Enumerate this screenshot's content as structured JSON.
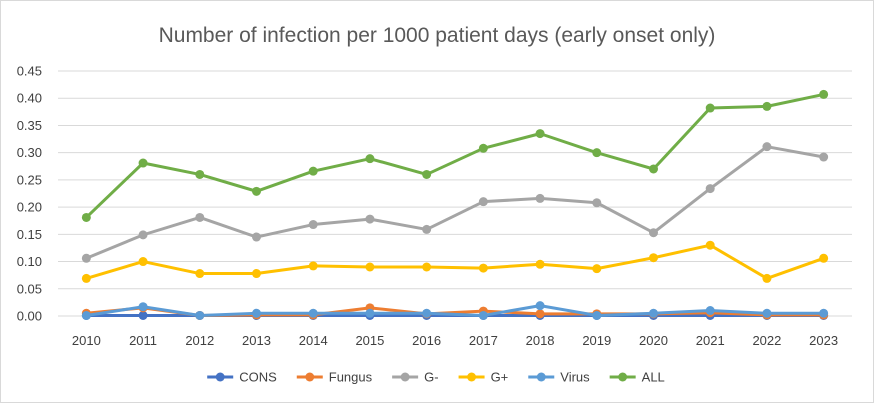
{
  "chart_data": {
    "type": "line",
    "title": "Number of infection per 1000 patient days (early onset only)",
    "xlabel": "",
    "ylabel": "",
    "x": [
      "2010",
      "2011",
      "2012",
      "2013",
      "2014",
      "2015",
      "2016",
      "2017",
      "2018",
      "2019",
      "2020",
      "2021",
      "2022",
      "2023"
    ],
    "ylim": [
      0,
      0.45
    ],
    "yticks": [
      "0.00",
      "0.05",
      "0.10",
      "0.15",
      "0.20",
      "0.25",
      "0.30",
      "0.35",
      "0.40",
      "0.45"
    ],
    "grid": true,
    "legend_position": "bottom",
    "series": [
      {
        "name": "CONS",
        "color": "#4472c4",
        "values": [
          0.001,
          0.001,
          0.001,
          0.001,
          0.001,
          0.001,
          0.001,
          0.001,
          0.001,
          0.001,
          0.001,
          0.001,
          0.001,
          0.001
        ]
      },
      {
        "name": "Fungus",
        "color": "#ed7d31",
        "values": [
          0.005,
          0.015,
          0.001,
          0.002,
          0.002,
          0.015,
          0.004,
          0.009,
          0.004,
          0.004,
          0.004,
          0.006,
          0.002,
          0.002
        ]
      },
      {
        "name": "G-",
        "color": "#a5a5a5",
        "values": [
          0.106,
          0.149,
          0.181,
          0.145,
          0.168,
          0.178,
          0.159,
          0.21,
          0.216,
          0.208,
          0.153,
          0.234,
          0.311,
          0.292
        ]
      },
      {
        "name": "G+",
        "color": "#ffc000",
        "values": [
          0.069,
          0.1,
          0.078,
          0.078,
          0.092,
          0.09,
          0.09,
          0.088,
          0.095,
          0.087,
          0.107,
          0.13,
          0.069,
          0.106
        ]
      },
      {
        "name": "Virus",
        "color": "#5b9bd5",
        "values": [
          0.001,
          0.017,
          0.001,
          0.005,
          0.005,
          0.005,
          0.005,
          0.001,
          0.019,
          0.001,
          0.005,
          0.01,
          0.005,
          0.005
        ]
      },
      {
        "name": "ALL",
        "color": "#70ad47",
        "values": [
          0.181,
          0.281,
          0.26,
          0.229,
          0.266,
          0.289,
          0.26,
          0.308,
          0.335,
          0.3,
          0.27,
          0.382,
          0.385,
          0.407
        ]
      }
    ]
  }
}
